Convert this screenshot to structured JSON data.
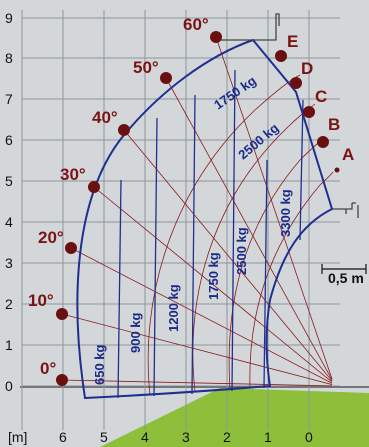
{
  "axes": {
    "y_ticks": [
      "0",
      "1",
      "2",
      "3",
      "4",
      "5",
      "6",
      "7",
      "8",
      "9"
    ],
    "x_ticks": [
      "6",
      "5",
      "4",
      "3",
      "2",
      "1",
      "0"
    ],
    "x_unit": "[m]"
  },
  "angles": [
    "0°",
    "10°",
    "20°",
    "30°",
    "40°",
    "50°",
    "60°"
  ],
  "extensions": [
    "A",
    "B",
    "C",
    "D",
    "E"
  ],
  "loads_vertical": [
    "650 kg",
    "900 kg",
    "1200 kg",
    "1750 kg",
    "2500 kg",
    "3300 kg"
  ],
  "loads_arc": [
    "1750 kg",
    "2500 kg"
  ],
  "extension_label": "0,5 m",
  "colors": {
    "background": "#d3d7da",
    "grid": "#8f959a",
    "envelope": "#1f2f8f",
    "arc": "#8a1a1a",
    "marker": "#6a1010",
    "ground": "#8dbf3a"
  }
}
